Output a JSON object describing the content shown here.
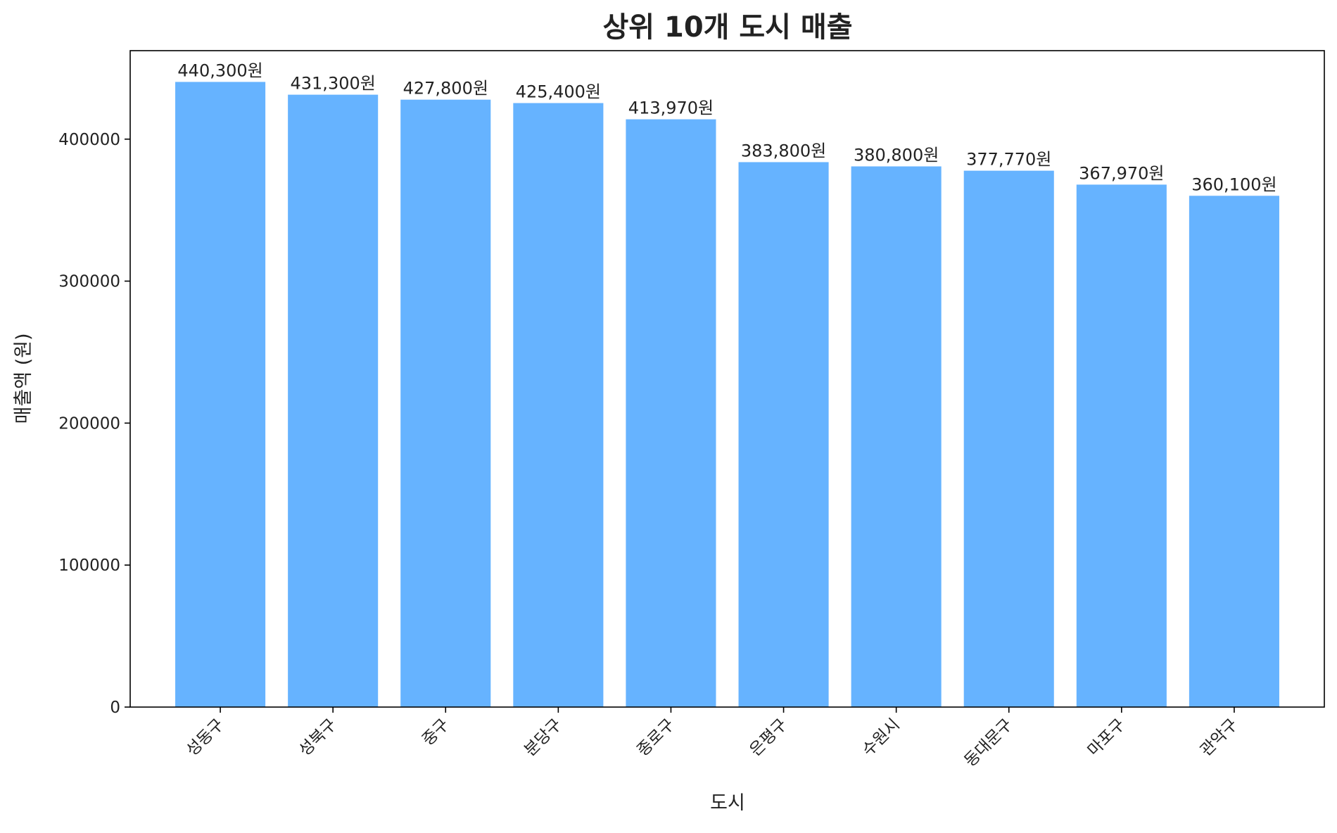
{
  "chart_data": {
    "type": "bar",
    "title": "상위 10개 도시 매출",
    "xlabel": "도시",
    "ylabel": "매출액 (원)",
    "categories": [
      "성동구",
      "성북구",
      "중구",
      "분당구",
      "종로구",
      "은평구",
      "수원시",
      "동대문구",
      "마포구",
      "관악구"
    ],
    "values": [
      440300,
      431300,
      427800,
      425400,
      413970,
      383800,
      380800,
      377770,
      367970,
      360100
    ],
    "value_labels": [
      "440,300원",
      "431,300원",
      "427,800원",
      "425,400원",
      "413,970원",
      "383,800원",
      "380,800원",
      "377,770원",
      "367,970원",
      "360,100원"
    ],
    "yticks": [
      0,
      100000,
      200000,
      300000,
      400000
    ],
    "ytick_labels": [
      "0",
      "100000",
      "200000",
      "300000",
      "400000"
    ],
    "ylim": [
      0,
      462315
    ],
    "grid": false,
    "colors": {
      "bar": "#66b3ff",
      "axis": "#000000",
      "text": "#222222"
    }
  }
}
